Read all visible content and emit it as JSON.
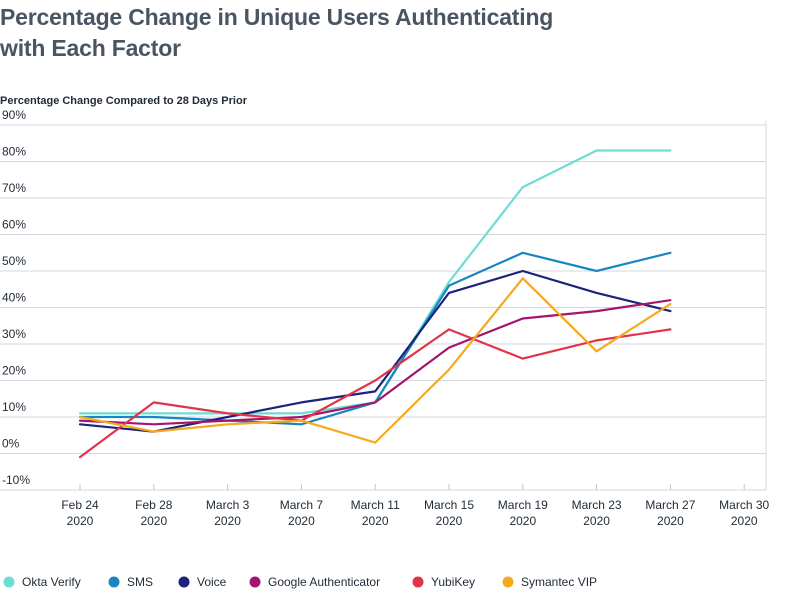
{
  "chart_data": {
    "type": "line",
    "title": "Percentage Change in Unique Users Authenticating with Each Factor",
    "subtitle": "Percentage Change Compared to 28 Days Prior",
    "x_labels": [
      [
        "Feb 24",
        "2020"
      ],
      [
        "Feb 28",
        "2020"
      ],
      [
        "March 3",
        "2020"
      ],
      [
        "March 7",
        "2020"
      ],
      [
        "March 11",
        "2020"
      ],
      [
        "March 15",
        "2020"
      ],
      [
        "March 19",
        "2020"
      ],
      [
        "March 23",
        "2020"
      ],
      [
        "March 27",
        "2020"
      ],
      [
        "March 30",
        "2020"
      ]
    ],
    "y_ticks": [
      -10,
      0,
      10,
      20,
      30,
      40,
      50,
      60,
      70,
      80,
      90
    ],
    "y_tick_labels": [
      "-10%",
      "0%",
      "10%",
      "20%",
      "30%",
      "40%",
      "50%",
      "60%",
      "70%",
      "80%",
      "90%"
    ],
    "ylim": [
      -10,
      90
    ],
    "grid": "horizontal",
    "legend_position": "bottom",
    "series": [
      {
        "name": "Okta Verify",
        "color": "#6fdcd3",
        "points": [
          [
            0,
            11
          ],
          [
            1,
            11
          ],
          [
            2,
            11
          ],
          [
            3,
            11
          ],
          [
            4,
            14
          ],
          [
            5,
            47
          ],
          [
            6,
            73
          ],
          [
            7,
            83
          ],
          [
            8,
            83
          ]
        ]
      },
      {
        "name": "SMS",
        "color": "#1a86bf",
        "points": [
          [
            0,
            10
          ],
          [
            1,
            10
          ],
          [
            2,
            9
          ],
          [
            3,
            8
          ],
          [
            4,
            14
          ],
          [
            5,
            46
          ],
          [
            6,
            55
          ],
          [
            7,
            50
          ],
          [
            8,
            55
          ]
        ]
      },
      {
        "name": "Voice",
        "color": "#1b237a",
        "points": [
          [
            0,
            8
          ],
          [
            1,
            6
          ],
          [
            2,
            10
          ],
          [
            3,
            14
          ],
          [
            4,
            17
          ],
          [
            5,
            44
          ],
          [
            6,
            50
          ],
          [
            7,
            44
          ],
          [
            8,
            39
          ]
        ]
      },
      {
        "name": "Google Authenticator",
        "color": "#a3166f",
        "points": [
          [
            0,
            9
          ],
          [
            1,
            8
          ],
          [
            2,
            9
          ],
          [
            3,
            10
          ],
          [
            4,
            14
          ],
          [
            5,
            29
          ],
          [
            6,
            37
          ],
          [
            7,
            39
          ],
          [
            8,
            42
          ]
        ]
      },
      {
        "name": "YubiKey",
        "color": "#e3334a",
        "points": [
          [
            0,
            -1
          ],
          [
            1,
            14
          ],
          [
            2,
            11
          ],
          [
            3,
            9
          ],
          [
            4,
            20
          ],
          [
            5,
            34
          ],
          [
            6,
            26
          ],
          [
            7,
            31
          ],
          [
            8,
            34
          ]
        ]
      },
      {
        "name": "Symantec VIP",
        "color": "#f5a91d",
        "points": [
          [
            0,
            10
          ],
          [
            1,
            6
          ],
          [
            2,
            8
          ],
          [
            3,
            9
          ],
          [
            4,
            3
          ],
          [
            5,
            23
          ],
          [
            6,
            48
          ],
          [
            7,
            28
          ],
          [
            8,
            41
          ]
        ]
      }
    ]
  }
}
